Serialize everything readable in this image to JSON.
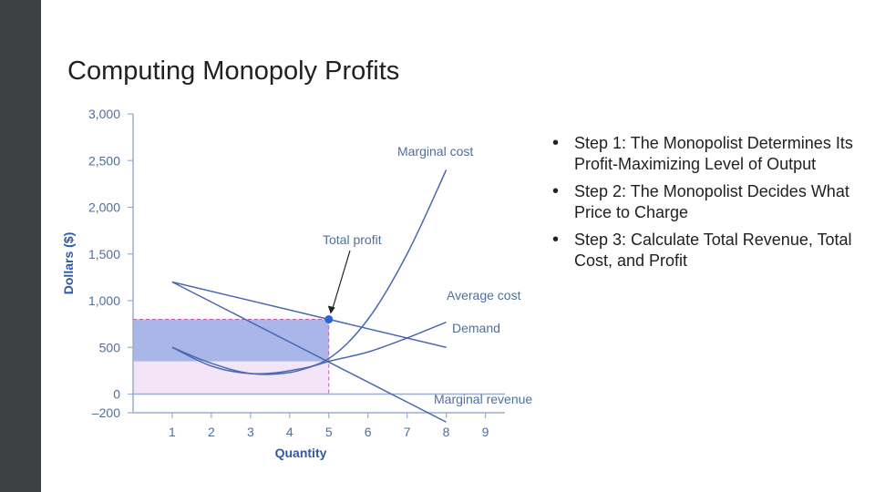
{
  "slide": {
    "title": "Computing Monopoly Profits",
    "bullets": [
      "Step 1: The Monopolist Determines Its Profit-Maximizing Level of Output",
      "Step 2: The Monopolist Decides What Price to Charge",
      "Step 3: Calculate Total Revenue, Total Cost, and Profit"
    ]
  },
  "colors": {
    "sidebar": "#3c4043",
    "axis": "#9aaed0",
    "curve": "#4a69b3",
    "profit_fill": "#aab6e8",
    "cost_fill": "#f3e4f7",
    "dashed": "#c45aa6",
    "marker": "#2d63d4",
    "text": "#4f6f9c"
  },
  "chart_data": {
    "type": "line",
    "xlabel": "Quantity",
    "ylabel": "Dollars ($)",
    "xlim": [
      0,
      9.5
    ],
    "ylim": [
      -200,
      3000
    ],
    "x_ticks": [
      1,
      2,
      3,
      4,
      5,
      6,
      7,
      8,
      9
    ],
    "y_ticks": [
      -200,
      0,
      500,
      1000,
      1500,
      2000,
      2500,
      3000
    ],
    "y_tick_labels": [
      "–200",
      "0",
      "500",
      "1,000",
      "1,500",
      "2,000",
      "2,500",
      "3,000"
    ],
    "series": [
      {
        "name": "Demand",
        "x": [
          1,
          8
        ],
        "y": [
          1200,
          500
        ]
      },
      {
        "name": "Marginal revenue",
        "x": [
          1,
          8
        ],
        "y": [
          1200,
          -300
        ]
      },
      {
        "name": "Average cost",
        "x": [
          1,
          2,
          3,
          4,
          5,
          6,
          7,
          8
        ],
        "y": [
          500,
          330,
          220,
          230,
          350,
          450,
          600,
          770
        ]
      },
      {
        "name": "Marginal cost",
        "x": [
          1,
          2,
          3,
          4,
          5,
          6,
          7,
          8
        ],
        "y": [
          500,
          300,
          220,
          250,
          380,
          800,
          1500,
          2400
        ]
      }
    ],
    "profit_region": {
      "quantity": 5,
      "price": 800,
      "average_cost": 350
    },
    "annotations": [
      {
        "text": "Total profit",
        "x": 5,
        "y": 800
      }
    ]
  }
}
